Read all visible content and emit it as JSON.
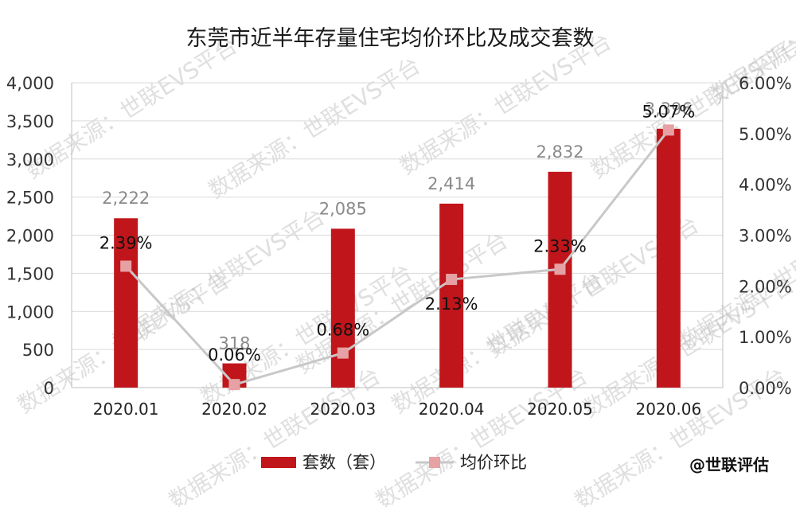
{
  "chart_data": {
    "type": "bar",
    "title": "东莞市近半年存量住宅均价环比及成交套数",
    "categories": [
      "2020.01",
      "2020.02",
      "2020.03",
      "2020.04",
      "2020.05",
      "2020.06"
    ],
    "series": [
      {
        "name": "套数（套）",
        "type": "bar",
        "axis": "left",
        "color": "#c0161b",
        "values": [
          2222,
          318,
          2085,
          2414,
          2832,
          3396
        ],
        "labels": [
          "2,222",
          "318",
          "2,085",
          "2,414",
          "2,832",
          "3,396"
        ]
      },
      {
        "name": "均价环比",
        "type": "line",
        "axis": "right",
        "color": "#c8c8c8",
        "marker_color": "#e6a1a4",
        "values": [
          2.39,
          0.06,
          0.68,
          2.13,
          2.33,
          5.07
        ],
        "labels": [
          "2.39%",
          "0.06%",
          "0.68%",
          "2.13%",
          "2.33%",
          "5.07%"
        ]
      }
    ],
    "y_left": {
      "range": [
        0,
        4000
      ],
      "ticks": [
        0,
        500,
        1000,
        1500,
        2000,
        2500,
        3000,
        3500,
        4000
      ],
      "tick_labels": [
        "0",
        "500",
        "1,000",
        "1,500",
        "2,000",
        "2,500",
        "3,000",
        "3,500",
        "4,000"
      ]
    },
    "y_right": {
      "range": [
        0,
        6
      ],
      "ticks": [
        0,
        1,
        2,
        3,
        4,
        5,
        6
      ],
      "tick_labels": [
        "0.00%",
        "1.00%",
        "2.00%",
        "3.00%",
        "4.00%",
        "5.00%",
        "6.00%"
      ]
    },
    "grid": true,
    "legend_position": "bottom"
  },
  "branding": "@世联评估",
  "watermark_texts": [
    "数据来源：世联EVS平台"
  ]
}
